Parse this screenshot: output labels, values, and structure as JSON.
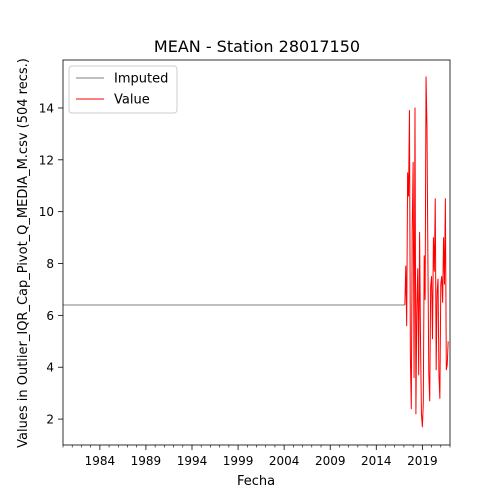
{
  "chart_data": {
    "type": "line",
    "title": "MEAN - Station 28017150",
    "xlabel": "Fecha",
    "ylabel": "Values in Outlier_IQR_Cap_Pivot_Q_MEDIA_M.csv (504 recs.)",
    "xlim": [
      1980.0,
      2022.0
    ],
    "ylim": [
      1.0,
      15.85
    ],
    "x_ticks": [
      1984,
      1989,
      1994,
      1999,
      2004,
      2009,
      2014,
      2019
    ],
    "y_ticks": [
      2,
      4,
      6,
      8,
      10,
      12,
      14
    ],
    "grid": false,
    "legend": "top-left",
    "series": [
      {
        "name": "Imputed",
        "color": "#555555",
        "x": [
          1980.0,
          2017.1
        ],
        "y": [
          6.4,
          6.4
        ]
      },
      {
        "name": "Value",
        "color": "#ff0000",
        "x": [
          2017.1,
          2017.2,
          2017.3,
          2017.4,
          2017.5,
          2017.6,
          2017.7,
          2017.8,
          2017.9,
          2018.0,
          2018.1,
          2018.2,
          2018.3,
          2018.4,
          2018.5,
          2018.6,
          2018.7,
          2018.8,
          2018.9,
          2019.0,
          2019.1,
          2019.2,
          2019.3,
          2019.4,
          2019.5,
          2019.6,
          2019.7,
          2019.8,
          2019.9,
          2020.0,
          2020.1,
          2020.2,
          2020.3,
          2020.4,
          2020.5,
          2020.6,
          2020.7,
          2020.8,
          2020.9,
          2021.0,
          2021.1,
          2021.2,
          2021.3,
          2021.4,
          2021.5,
          2021.6,
          2021.7,
          2021.8
        ],
        "y": [
          6.4,
          7.9,
          5.6,
          11.5,
          10.6,
          13.9,
          4.4,
          2.4,
          9.3,
          11.9,
          3.6,
          14.0,
          2.2,
          6.3,
          7.8,
          3.7,
          9.2,
          5.0,
          2.2,
          1.7,
          2.6,
          8.3,
          6.6,
          15.2,
          13.3,
          8.2,
          3.7,
          2.7,
          7.1,
          7.5,
          5.1,
          9.0,
          7.7,
          10.5,
          3.9,
          6.9,
          7.4,
          3.7,
          2.8,
          7.2,
          7.5,
          6.5,
          9.0,
          7.2,
          10.5,
          3.9,
          4.1,
          5.0
        ]
      }
    ]
  }
}
